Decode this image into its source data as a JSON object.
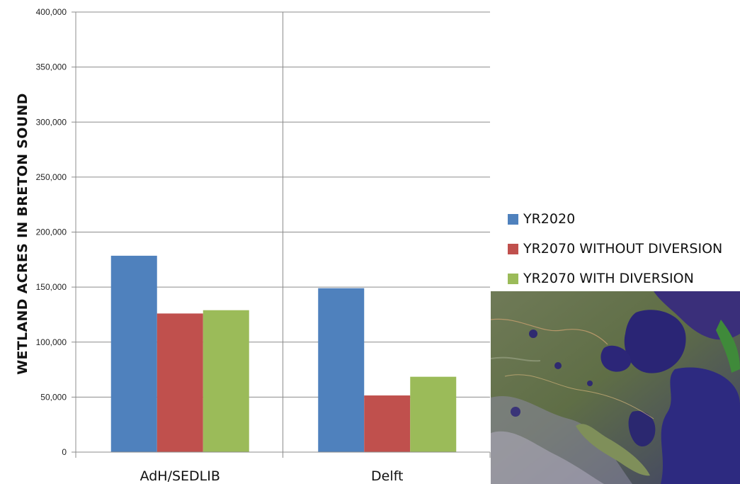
{
  "chart_data": {
    "type": "bar",
    "title": "",
    "xlabel": "",
    "ylabel": "WETLAND ACRES  IN BRETON SOUND",
    "categories": [
      "AdH/SEDLIB",
      "Delft"
    ],
    "series": [
      {
        "name": "YR2020",
        "color": "#4f81bd",
        "values": [
          178500,
          149000
        ]
      },
      {
        "name": "YR2070 WITHOUT DIVERSION",
        "color": "#c0504d",
        "values": [
          126000,
          51500
        ]
      },
      {
        "name": "YR2070 WITH DIVERSION",
        "color": "#9bbb59",
        "values": [
          129000,
          68500
        ]
      }
    ],
    "ylim": [
      0,
      400000
    ],
    "yticks": [
      0,
      50000,
      100000,
      150000,
      200000,
      250000,
      300000,
      350000,
      400000
    ],
    "ytick_labels": [
      "0",
      "50,000",
      "100,000",
      "150,000",
      "200,000",
      "250,000",
      "300,000",
      "350,000",
      "400,000"
    ],
    "grid": true,
    "legend_position": "right"
  },
  "image": {
    "kind": "satellite-photo",
    "subject": "Breton Sound wetlands"
  }
}
